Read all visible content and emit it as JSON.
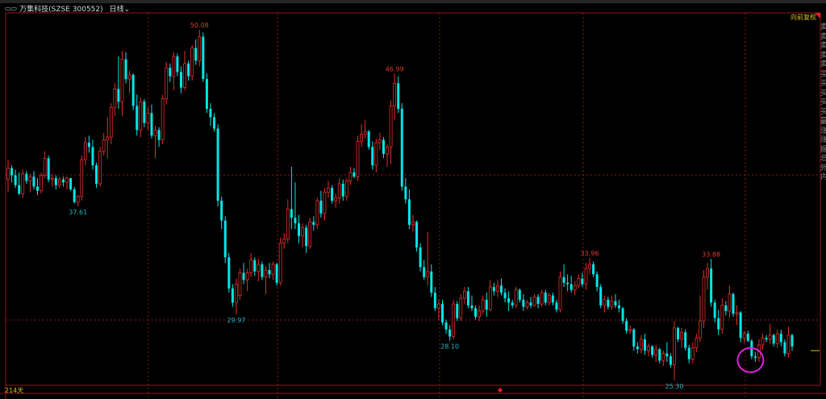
{
  "header": {
    "stock_title": "万集科技(SZSE 300552)",
    "period": "日线",
    "menu_icon": "window-icon",
    "dropdown_icon": "chevron-down-icon"
  },
  "adjust_mode": "向前复权",
  "days_label": "214天",
  "right_panel": [
    "卖",
    "卖",
    "卖",
    "卖",
    "卖",
    "买",
    "买",
    "买",
    "买",
    "买",
    "最",
    "涨",
    "涨",
    "振",
    "总",
    "外",
    "内"
  ],
  "colors": {
    "up": "#e0302a",
    "down": "#00e6e6",
    "grid": "#8b1a1a",
    "label_down": "#1fb8c4",
    "label_up": "#e03a33",
    "highlight": "#e020e0"
  },
  "chart_data": {
    "type": "candlestick",
    "ylim": [
      24.95,
      51.28
    ],
    "grid": true,
    "candles": [
      [
        39.5,
        40.9,
        38.6,
        40.3
      ],
      [
        40.3,
        40.5,
        39.3,
        39.8
      ],
      [
        39.8,
        40.2,
        38.9,
        39.1
      ],
      [
        39.1,
        40.0,
        38.4,
        38.5
      ],
      [
        38.5,
        40.2,
        38.2,
        39.9
      ],
      [
        39.9,
        40.1,
        39.2,
        39.4
      ],
      [
        39.4,
        39.9,
        38.6,
        39.7
      ],
      [
        39.7,
        40.1,
        38.8,
        39.0
      ],
      [
        39.0,
        39.6,
        38.4,
        38.7
      ],
      [
        38.7,
        40.0,
        38.5,
        39.8
      ],
      [
        39.8,
        41.5,
        39.6,
        41.0
      ],
      [
        41.0,
        41.2,
        39.3,
        39.5
      ],
      [
        39.5,
        39.9,
        39.0,
        39.6
      ],
      [
        39.6,
        39.8,
        38.8,
        39.1
      ],
      [
        39.1,
        39.7,
        38.9,
        39.5
      ],
      [
        39.5,
        39.7,
        39.0,
        39.3
      ],
      [
        39.3,
        39.7,
        38.8,
        39.6
      ],
      [
        39.6,
        39.6,
        38.7,
        38.8
      ],
      [
        38.8,
        39.0,
        37.8,
        37.9
      ],
      [
        37.9,
        38.4,
        37.61,
        38.3
      ],
      [
        38.3,
        41.2,
        38.0,
        40.9
      ],
      [
        40.9,
        42.5,
        40.5,
        42.1
      ],
      [
        42.1,
        42.6,
        41.4,
        41.8
      ],
      [
        41.8,
        42.3,
        40.2,
        40.5
      ],
      [
        40.5,
        40.7,
        38.9,
        39.2
      ],
      [
        39.2,
        41.8,
        39.0,
        41.5
      ],
      [
        41.5,
        42.8,
        41.2,
        42.3
      ],
      [
        42.3,
        43.9,
        41.0,
        42.5
      ],
      [
        42.5,
        44.9,
        42.0,
        44.6
      ],
      [
        44.6,
        46.3,
        44.0,
        45.9
      ],
      [
        45.9,
        48.2,
        44.5,
        45.0
      ],
      [
        45.0,
        48.6,
        44.0,
        48.0
      ],
      [
        48.0,
        48.5,
        46.3,
        46.6
      ],
      [
        46.6,
        47.2,
        45.6,
        46.9
      ],
      [
        46.9,
        47.0,
        44.4,
        44.7
      ],
      [
        44.7,
        45.5,
        42.6,
        43.0
      ],
      [
        43.0,
        45.3,
        42.5,
        45.0
      ],
      [
        45.0,
        45.2,
        43.2,
        43.5
      ],
      [
        43.5,
        44.6,
        43.0,
        44.2
      ],
      [
        44.2,
        44.8,
        42.4,
        42.6
      ],
      [
        42.6,
        43.3,
        41.0,
        43.0
      ],
      [
        43.0,
        43.2,
        41.8,
        42.3
      ],
      [
        42.3,
        45.5,
        42.0,
        45.2
      ],
      [
        45.2,
        47.8,
        44.8,
        47.4
      ],
      [
        47.4,
        47.7,
        46.4,
        46.8
      ],
      [
        46.8,
        48.5,
        45.8,
        48.2
      ],
      [
        48.2,
        48.4,
        46.8,
        47.1
      ],
      [
        47.1,
        47.5,
        45.6,
        46.0
      ],
      [
        46.0,
        48.6,
        45.8,
        47.7
      ],
      [
        47.7,
        47.9,
        46.5,
        46.8
      ],
      [
        46.8,
        49.0,
        46.5,
        48.8
      ],
      [
        48.8,
        49.4,
        47.6,
        47.9
      ],
      [
        47.9,
        50.08,
        47.5,
        49.6
      ],
      [
        49.6,
        49.9,
        46.4,
        46.6
      ],
      [
        46.6,
        47.0,
        44.2,
        44.5
      ],
      [
        44.5,
        44.9,
        43.3,
        43.9
      ],
      [
        43.9,
        44.2,
        42.9,
        43.1
      ],
      [
        43.1,
        43.4,
        37.6,
        38.0
      ],
      [
        38.0,
        38.3,
        36.0,
        36.6
      ],
      [
        36.6,
        36.9,
        33.6,
        34.0
      ],
      [
        34.0,
        34.3,
        31.5,
        31.8
      ],
      [
        31.8,
        32.1,
        30.5,
        30.8
      ],
      [
        30.8,
        32.5,
        29.97,
        32.1
      ],
      [
        31.3,
        33.2,
        31.0,
        32.9
      ],
      [
        32.9,
        33.6,
        32.1,
        32.4
      ],
      [
        32.4,
        33.2,
        31.6,
        32.9
      ],
      [
        32.9,
        34.3,
        32.6,
        33.8
      ],
      [
        33.8,
        34.0,
        32.7,
        33.0
      ],
      [
        33.0,
        33.9,
        32.3,
        33.5
      ],
      [
        33.5,
        33.7,
        32.4,
        32.6
      ],
      [
        32.6,
        33.4,
        31.4,
        33.1
      ],
      [
        33.1,
        33.6,
        32.5,
        32.8
      ],
      [
        32.8,
        33.7,
        32.4,
        33.5
      ],
      [
        33.5,
        33.6,
        32.0,
        32.2
      ],
      [
        32.2,
        35.4,
        32.0,
        35.0
      ],
      [
        35.0,
        35.7,
        34.6,
        35.3
      ],
      [
        35.3,
        38.1,
        35.0,
        37.4
      ],
      [
        37.4,
        40.4,
        36.0,
        36.8
      ],
      [
        36.8,
        39.3,
        36.0,
        36.4
      ],
      [
        36.4,
        37.0,
        35.0,
        35.5
      ],
      [
        35.5,
        36.4,
        34.7,
        36.1
      ],
      [
        36.1,
        36.3,
        34.3,
        34.8
      ],
      [
        34.8,
        36.8,
        34.6,
        36.5
      ],
      [
        36.5,
        36.9,
        35.9,
        36.3
      ],
      [
        36.3,
        38.2,
        36.0,
        38.0
      ],
      [
        38.0,
        38.7,
        36.8,
        37.1
      ],
      [
        37.1,
        38.9,
        36.6,
        38.6
      ],
      [
        38.6,
        39.4,
        38.2,
        38.9
      ],
      [
        38.9,
        39.1,
        37.8,
        38.0
      ],
      [
        38.0,
        38.5,
        37.5,
        38.2
      ],
      [
        38.2,
        39.6,
        37.8,
        39.2
      ],
      [
        39.2,
        39.5,
        38.0,
        38.3
      ],
      [
        38.3,
        39.6,
        38.0,
        39.4
      ],
      [
        39.4,
        40.4,
        39.1,
        40.0
      ],
      [
        40.0,
        40.3,
        39.6,
        39.7
      ],
      [
        39.7,
        42.6,
        39.4,
        42.2
      ],
      [
        42.2,
        43.4,
        41.8,
        42.7
      ],
      [
        42.7,
        43.7,
        42.4,
        42.9
      ],
      [
        42.9,
        43.0,
        41.6,
        41.8
      ],
      [
        41.8,
        42.2,
        40.2,
        40.5
      ],
      [
        40.5,
        42.4,
        40.0,
        42.1
      ],
      [
        42.1,
        42.8,
        41.6,
        42.3
      ],
      [
        42.3,
        42.5,
        41.0,
        41.3
      ],
      [
        41.3,
        42.0,
        40.4,
        41.8
      ],
      [
        41.8,
        45.1,
        40.6,
        44.7
      ],
      [
        44.7,
        46.99,
        43.7,
        46.3
      ],
      [
        46.3,
        46.8,
        44.2,
        44.5
      ],
      [
        44.5,
        44.9,
        38.7,
        39.0
      ],
      [
        39.0,
        39.6,
        37.8,
        38.1
      ],
      [
        38.1,
        38.8,
        36.0,
        36.3
      ],
      [
        36.3,
        37.0,
        35.8,
        36.5
      ],
      [
        36.5,
        36.6,
        34.4,
        34.7
      ],
      [
        34.7,
        35.0,
        33.0,
        33.3
      ],
      [
        33.3,
        33.8,
        32.4,
        32.6
      ],
      [
        32.6,
        35.8,
        32.0,
        33.0
      ],
      [
        33.0,
        33.5,
        31.2,
        31.5
      ],
      [
        31.5,
        31.9,
        30.2,
        30.4
      ],
      [
        30.4,
        31.0,
        29.6,
        30.7
      ],
      [
        30.7,
        31.0,
        29.2,
        29.4
      ],
      [
        29.4,
        29.6,
        28.6,
        28.9
      ],
      [
        28.9,
        29.2,
        28.1,
        28.4
      ],
      [
        28.4,
        31.0,
        28.2,
        30.7
      ],
      [
        30.7,
        30.9,
        29.5,
        29.7
      ],
      [
        29.7,
        31.4,
        29.5,
        31.1
      ],
      [
        31.1,
        31.9,
        30.7,
        31.6
      ],
      [
        31.6,
        31.9,
        30.4,
        30.6
      ],
      [
        30.6,
        31.3,
        30.2,
        30.4
      ],
      [
        30.4,
        30.6,
        29.6,
        29.8
      ],
      [
        29.8,
        30.6,
        29.5,
        30.2
      ],
      [
        30.2,
        31.3,
        30.0,
        31.0
      ],
      [
        31.0,
        31.5,
        29.8,
        30.3
      ],
      [
        30.3,
        32.4,
        30.2,
        31.9
      ],
      [
        31.9,
        32.2,
        31.3,
        31.6
      ],
      [
        31.6,
        32.4,
        31.2,
        32.0
      ],
      [
        32.0,
        32.5,
        31.3,
        31.5
      ],
      [
        31.5,
        31.8,
        30.8,
        31.1
      ],
      [
        31.1,
        31.6,
        30.2,
        30.8
      ],
      [
        30.8,
        31.0,
        30.4,
        30.6
      ],
      [
        30.6,
        31.9,
        30.4,
        31.7
      ],
      [
        31.7,
        31.8,
        30.8,
        31.0
      ],
      [
        31.0,
        31.4,
        30.2,
        30.5
      ],
      [
        30.5,
        31.0,
        30.3,
        30.8
      ],
      [
        30.8,
        31.2,
        30.4,
        30.6
      ],
      [
        30.6,
        31.4,
        30.5,
        31.2
      ],
      [
        31.2,
        31.4,
        30.4,
        30.7
      ],
      [
        30.7,
        31.7,
        30.5,
        31.5
      ],
      [
        31.5,
        31.7,
        30.6,
        30.8
      ],
      [
        30.8,
        31.5,
        30.6,
        31.3
      ],
      [
        31.3,
        31.5,
        30.6,
        30.8
      ],
      [
        30.8,
        31.0,
        30.1,
        30.3
      ],
      [
        30.3,
        33.0,
        30.1,
        32.6
      ],
      [
        32.6,
        33.5,
        31.9,
        32.2
      ],
      [
        32.2,
        32.8,
        31.6,
        32.1
      ],
      [
        32.1,
        32.7,
        31.5,
        31.7
      ],
      [
        31.7,
        32.3,
        31.3,
        32.0
      ],
      [
        32.0,
        32.8,
        31.8,
        32.5
      ],
      [
        32.5,
        32.9,
        31.9,
        32.1
      ],
      [
        32.1,
        33.6,
        31.7,
        33.2
      ],
      [
        33.2,
        33.96,
        32.8,
        33.5
      ],
      [
        33.5,
        33.7,
        32.6,
        32.8
      ],
      [
        32.8,
        33.0,
        31.6,
        31.9
      ],
      [
        31.9,
        32.1,
        30.4,
        30.6
      ],
      [
        30.6,
        31.3,
        30.1,
        31.0
      ],
      [
        31.0,
        31.2,
        30.3,
        30.5
      ],
      [
        30.5,
        31.3,
        30.3,
        30.9
      ],
      [
        30.9,
        31.4,
        30.4,
        30.6
      ],
      [
        30.6,
        31.0,
        30.1,
        30.4
      ],
      [
        30.4,
        30.5,
        29.3,
        29.5
      ],
      [
        29.5,
        29.7,
        28.6,
        28.8
      ],
      [
        28.8,
        29.2,
        28.6,
        28.9
      ],
      [
        28.9,
        29.0,
        27.4,
        27.7
      ],
      [
        27.7,
        28.0,
        27.2,
        27.5
      ],
      [
        27.5,
        28.5,
        27.2,
        28.2
      ],
      [
        28.2,
        28.6,
        27.1,
        27.4
      ],
      [
        27.4,
        27.9,
        27.0,
        27.7
      ],
      [
        27.7,
        27.8,
        26.9,
        27.1
      ],
      [
        27.1,
        27.8,
        26.6,
        27.5
      ],
      [
        27.5,
        27.6,
        26.5,
        26.7
      ],
      [
        26.7,
        27.4,
        26.3,
        27.2
      ],
      [
        27.2,
        28.0,
        26.6,
        27.0
      ],
      [
        27.0,
        27.2,
        26.2,
        26.4
      ],
      [
        26.4,
        29.5,
        25.3,
        29.0
      ],
      [
        29.0,
        29.1,
        28.0,
        28.2
      ],
      [
        28.2,
        29.0,
        27.6,
        28.7
      ],
      [
        28.7,
        28.9,
        27.4,
        27.6
      ],
      [
        27.6,
        27.8,
        26.5,
        26.8
      ],
      [
        26.8,
        28.0,
        26.5,
        27.6
      ],
      [
        27.6,
        28.6,
        27.3,
        28.3
      ],
      [
        28.3,
        31.3,
        28.0,
        29.5
      ],
      [
        29.5,
        33.1,
        29.0,
        32.6
      ],
      [
        32.6,
        33.6,
        31.7,
        33.2
      ],
      [
        33.2,
        33.88,
        30.5,
        30.8
      ],
      [
        30.8,
        31.0,
        29.4,
        29.7
      ],
      [
        29.7,
        30.3,
        28.5,
        28.9
      ],
      [
        28.9,
        31.1,
        28.6,
        30.6
      ],
      [
        30.6,
        30.9,
        29.9,
        30.2
      ],
      [
        30.2,
        32.0,
        29.7,
        31.4
      ],
      [
        31.4,
        31.5,
        29.8,
        30.0
      ],
      [
        30.0,
        30.6,
        29.2,
        30.1
      ],
      [
        30.1,
        30.2,
        28.0,
        28.3
      ],
      [
        28.3,
        28.8,
        27.9,
        28.6
      ],
      [
        28.6,
        28.8,
        28.0,
        28.1
      ],
      [
        28.1,
        28.2,
        26.8,
        27.0
      ],
      [
        27.0,
        27.3,
        26.6,
        26.9
      ],
      [
        26.9,
        28.2,
        26.6,
        27.8
      ],
      [
        27.8,
        28.6,
        27.5,
        28.3
      ],
      [
        28.3,
        28.5,
        28.0,
        28.2
      ],
      [
        28.2,
        29.3,
        27.9,
        28.5
      ],
      [
        28.5,
        28.6,
        27.7,
        27.9
      ],
      [
        27.9,
        28.9,
        27.6,
        28.6
      ],
      [
        28.6,
        28.9,
        27.7,
        28.0
      ],
      [
        28.0,
        28.2,
        27.0,
        27.2
      ],
      [
        27.2,
        29.1,
        26.9,
        28.5
      ],
      [
        28.5,
        28.6,
        27.4,
        27.7
      ]
    ],
    "annotations": [
      {
        "index": 52,
        "text": "50.08",
        "kind": "high"
      },
      {
        "index": 19,
        "text": "37.61",
        "kind": "low"
      },
      {
        "index": 62,
        "text": "29.97",
        "kind": "low"
      },
      {
        "index": 105,
        "text": "46.99",
        "kind": "high"
      },
      {
        "index": 120,
        "text": "28.10",
        "kind": "low"
      },
      {
        "index": 158,
        "text": "33.96",
        "kind": "high"
      },
      {
        "index": 181,
        "text": "25.30",
        "kind": "low"
      },
      {
        "index": 191,
        "text": "33.88",
        "kind": "high"
      }
    ],
    "highlight_index": 203
  }
}
